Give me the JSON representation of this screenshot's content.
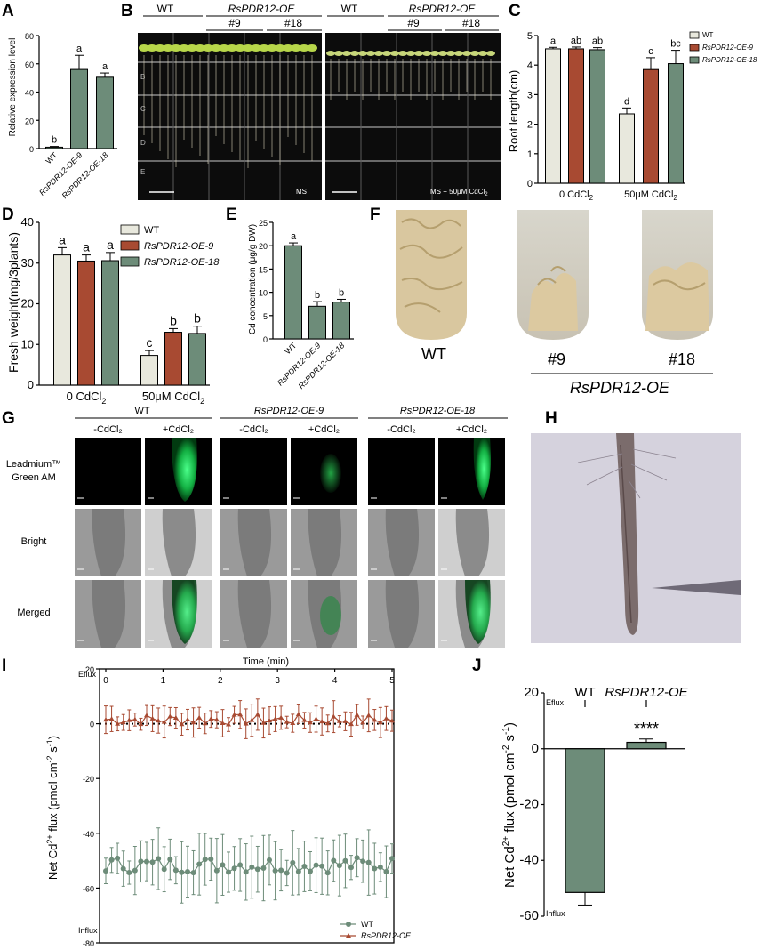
{
  "panels": {
    "A": "A",
    "B": "B",
    "C": "C",
    "D": "D",
    "E": "E",
    "F": "F",
    "G": "G",
    "H": "H",
    "I": "I",
    "J": "J"
  },
  "colors": {
    "wt": "#e8e8dd",
    "oe9": "#a84a32",
    "oe18": "#6d8c79",
    "green_bar": "#6d8c79",
    "line_wt": "#6d8c79",
    "line_oe": "#a84a32"
  },
  "chart_data": [
    {
      "id": "A",
      "type": "bar",
      "categories": [
        "WT",
        "RsPDR12-OE-9",
        "RsPDR12-OE-18"
      ],
      "values": [
        1,
        56,
        50.5
      ],
      "errors": [
        0.5,
        10,
        3
      ],
      "letters": [
        "b",
        "a",
        "a"
      ],
      "ylabel": "Relative expression level",
      "ylim": [
        0,
        80
      ],
      "yticks": [
        "0",
        "20",
        "40",
        "60",
        "80"
      ]
    },
    {
      "id": "C",
      "type": "bar",
      "categories": [
        "0 CdCl2",
        "50μM CdCl2"
      ],
      "series": [
        {
          "name": "WT",
          "values": [
            4.55,
            2.35
          ],
          "errors": [
            0.05,
            0.2
          ],
          "letters": [
            "a",
            "d"
          ]
        },
        {
          "name": "RsPDR12-OE-9",
          "values": [
            4.55,
            3.85
          ],
          "errors": [
            0.06,
            0.4
          ],
          "letters": [
            "ab",
            "c"
          ]
        },
        {
          "name": "RsPDR12-OE-18",
          "values": [
            4.52,
            4.05
          ],
          "errors": [
            0.07,
            0.45
          ],
          "letters": [
            "ab",
            "bc"
          ]
        }
      ],
      "ylabel": "Root length(cm)",
      "ylim": [
        0,
        5
      ],
      "yticks": [
        "0",
        "1",
        "2",
        "3",
        "4",
        "5"
      ],
      "xtick_labels": [
        "0 CdCl",
        "50μM CdCl"
      ],
      "subscript": "2",
      "legend": "top-right"
    },
    {
      "id": "D",
      "type": "bar",
      "categories": [
        "0 CdCl2",
        "50μM CdCl2"
      ],
      "series": [
        {
          "name": "WT",
          "values": [
            32,
            7.3
          ],
          "errors": [
            1.8,
            1.2
          ],
          "letters": [
            "a",
            "c"
          ]
        },
        {
          "name": "RsPDR12-OE-9",
          "values": [
            30.5,
            13
          ],
          "errors": [
            1.5,
            0.9
          ],
          "letters": [
            "a",
            "b"
          ]
        },
        {
          "name": "RsPDR12-OE-18",
          "values": [
            30.6,
            12.7
          ],
          "errors": [
            2,
            1.8
          ],
          "letters": [
            "a",
            "b"
          ]
        }
      ],
      "ylabel": "Fresh weight(mg/3plants)",
      "ylim": [
        0,
        40
      ],
      "yticks": [
        "0",
        "10",
        "20",
        "30",
        "40"
      ],
      "xtick_labels": [
        "0 CdCl",
        "50μM CdCl"
      ],
      "subscript": "2",
      "legend": "top-right"
    },
    {
      "id": "E",
      "type": "bar",
      "categories": [
        "WT",
        "RsPDR12-OE-9",
        "RsPDR12-OE-18"
      ],
      "values": [
        20,
        7,
        7.9
      ],
      "errors": [
        0.6,
        1,
        0.6
      ],
      "letters": [
        "a",
        "b",
        "b"
      ],
      "ylabel": "Cd concentration (μg/g DW)",
      "ylim": [
        0,
        25
      ],
      "yticks": [
        "0",
        "5",
        "10",
        "15",
        "20",
        "25"
      ]
    },
    {
      "id": "I",
      "type": "line",
      "title": "Time (min)",
      "ylabel": "Net Cd2+ flux (pmol cm-2 s-1)",
      "xlim": [
        0,
        5
      ],
      "ylim": [
        -80,
        20
      ],
      "xticks": [
        "0",
        "1",
        "2",
        "3",
        "4",
        "5"
      ],
      "yticks": [
        "20",
        "0",
        "-20",
        "-40",
        "-60",
        "-80"
      ],
      "efflux": "Eflux",
      "influx": "Influx",
      "legend": "bottom-right",
      "series": [
        {
          "name": "RsPDR12-OE",
          "mean": 1.5,
          "error": 4
        },
        {
          "name": "WT",
          "mean": -51.5,
          "error": 8
        }
      ]
    },
    {
      "id": "J",
      "type": "bar",
      "categories": [
        "WT",
        "RsPDR12-OE"
      ],
      "values": [
        -51.5,
        2.3
      ],
      "errors": [
        4.5,
        1.2
      ],
      "significance": "****",
      "ylabel": "Net Cd2+ flux (pmol cm-2 s-1)",
      "ylim": [
        -60,
        20
      ],
      "yticks": [
        "20",
        "0",
        "-20",
        "-40",
        "-60"
      ],
      "efflux": "Eflux",
      "influx": "Influx"
    }
  ],
  "panelB": {
    "groups_left": {
      "wt": "WT",
      "oe": "RsPDR12-OE",
      "n9": "#9",
      "n18": "#18"
    },
    "groups_right": {
      "wt": "WT",
      "oe": "RsPDR12-OE",
      "n9": "#9",
      "n18": "#18"
    },
    "label_left": "MS",
    "label_right": "MS + 50μM CdCl",
    "subscript": "2",
    "rows": [
      "B",
      "C",
      "D",
      "E"
    ]
  },
  "panelF": {
    "wt": "WT",
    "n9": "#9",
    "n18": "#18",
    "oe": "RsPDR12-OE"
  },
  "panelG": {
    "groups": [
      "WT",
      "RsPDR12-OE-9",
      "RsPDR12-OE-18"
    ],
    "minus": "-CdCl₂",
    "plus": "+CdCl₂",
    "row1a": "Leadmium™",
    "row1b": "Green AM",
    "row2": "Bright",
    "row3": "Merged"
  }
}
